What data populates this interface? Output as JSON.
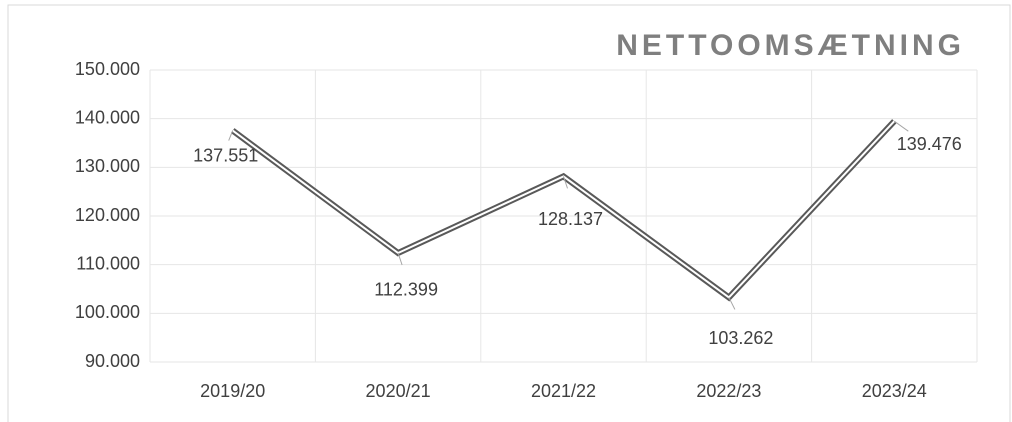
{
  "chart_data": {
    "type": "line",
    "title": "NETTOOMSÆTNING",
    "categories": [
      "2019/20",
      "2020/21",
      "2021/22",
      "2022/23",
      "2023/24"
    ],
    "series": [
      {
        "name": "Nettoomsætning",
        "color": "#595959",
        "values": [
          137551,
          112399,
          128137,
          103262,
          139476
        ],
        "value_labels": [
          "137.551",
          "112.399",
          "128.137",
          "103.262",
          "139.476"
        ]
      }
    ],
    "ylim": [
      90000,
      150000
    ],
    "yticks": [
      {
        "value": 90000,
        "label": "90.000"
      },
      {
        "value": 100000,
        "label": "100.000"
      },
      {
        "value": 110000,
        "label": "110.000"
      },
      {
        "value": 120000,
        "label": "120.000"
      },
      {
        "value": 130000,
        "label": "130.000"
      },
      {
        "value": 140000,
        "label": "140.000"
      },
      {
        "value": 150000,
        "label": "150.000"
      }
    ],
    "grid": true
  }
}
